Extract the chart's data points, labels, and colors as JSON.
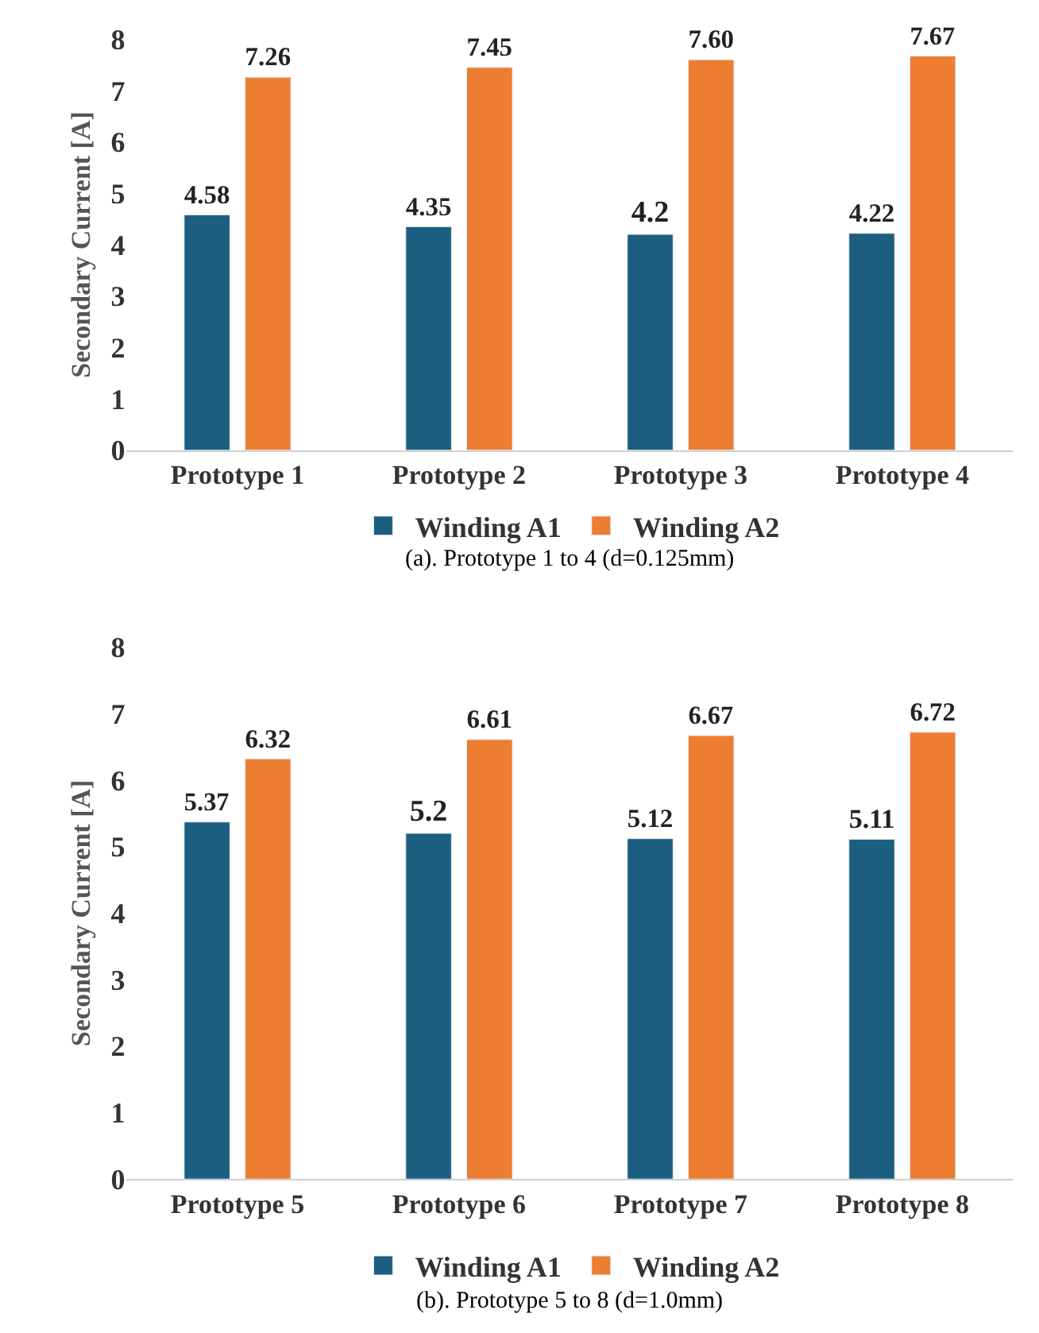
{
  "chart_data": [
    {
      "type": "bar",
      "ylabel": "Secondary Current [A]",
      "categories": [
        "Prototype 1",
        "Prototype 2",
        "Prototype 3",
        "Prototype 4"
      ],
      "ylim": [
        0,
        8
      ],
      "yticks": [
        0,
        1,
        2,
        3,
        4,
        5,
        6,
        7,
        8
      ],
      "legend": "bottom",
      "data_labels": true,
      "series": [
        {
          "name": "Winding A1",
          "color": "#1b5e80",
          "values": [
            4.58,
            4.35,
            4.2,
            4.22
          ],
          "value_labels": [
            "4.58",
            "4.35",
            "4.2",
            "4.22"
          ]
        },
        {
          "name": "Winding A2",
          "color": "#ed7d31",
          "values": [
            7.26,
            7.45,
            7.6,
            7.67
          ],
          "value_labels": [
            "7.26",
            "7.45",
            "7.60",
            "7.67"
          ]
        }
      ],
      "annotations": [
        "(a). Prototype 1 to 4 (d=0.125mm)"
      ]
    },
    {
      "type": "bar",
      "ylabel": "Secondary Current [A]",
      "categories": [
        "Prototype 5",
        "Prototype 6",
        "Prototype 7",
        "Prototype 8"
      ],
      "ylim": [
        0,
        8
      ],
      "yticks": [
        0,
        1,
        2,
        3,
        4,
        5,
        6,
        7,
        8
      ],
      "legend": "bottom",
      "data_labels": true,
      "series": [
        {
          "name": "Winding A1",
          "color": "#1b5e80",
          "values": [
            5.37,
            5.2,
            5.12,
            5.11
          ],
          "value_labels": [
            "5.37",
            "5.2",
            "5.12",
            "5.11"
          ]
        },
        {
          "name": "Winding A2",
          "color": "#ed7d31",
          "values": [
            6.32,
            6.61,
            6.67,
            6.72
          ],
          "value_labels": [
            "6.32",
            "6.61",
            "6.67",
            "6.72"
          ]
        }
      ],
      "annotations": [
        "(b). Prototype 5 to 8 (d=1.0mm)"
      ]
    }
  ]
}
